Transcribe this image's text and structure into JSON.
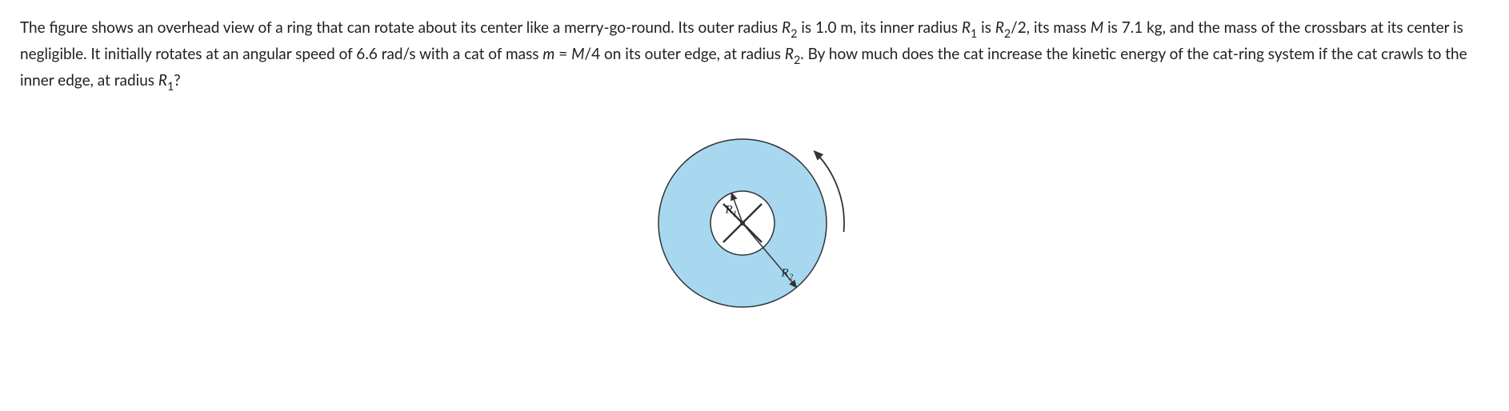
{
  "question": {
    "part1_a": "The figure shows an overhead view of a ring that can rotate about its center like a merry-go-round. Its outer radius ",
    "R2_a": "R",
    "R2_sub_a": "2",
    "part1_b": " is 1.0 m, its inner radius ",
    "R1_a": "R",
    "R1_sub_a": "1",
    "part1_c": " is ",
    "R2_b": "R",
    "R2_sub_b": "2",
    "part1_d": "/2, its mass ",
    "M": "M",
    "part1_e": " is 7.1 kg, and the mass of the crossbars at its center is negligible. It initially rotates at an angular speed of 6.6 rad/s with a cat of mass ",
    "m": "m",
    "part1_f": " = ",
    "M2": "M",
    "part1_g": "/4 on its outer edge, at radius ",
    "R2_c": "R",
    "R2_sub_c": "2",
    "part1_h": ". By how much does the cat increase the kinetic energy of the cat-ring system if the cat crawls to the inner edge, at radius ",
    "R1_b": "R",
    "R1_sub_b": "1",
    "part1_i": "?"
  },
  "figure": {
    "outer_radius": 105,
    "inner_radius": 40,
    "ring_fill": "#a7d8f0",
    "ring_stroke": "#333333",
    "center_fill": "#ffffff",
    "crossbar_color": "#333333",
    "label_R1": "R",
    "label_R1_sub": "1",
    "label_R2": "R",
    "label_R2_sub": "2",
    "arrow_color": "#333333"
  }
}
